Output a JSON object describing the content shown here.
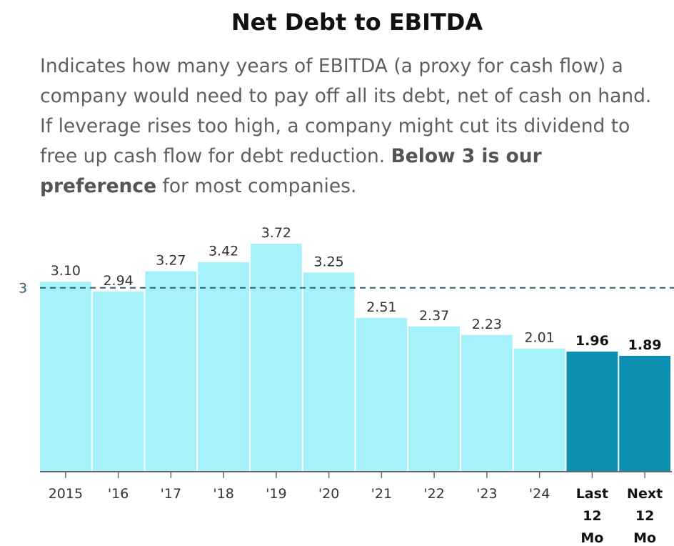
{
  "title": "Net Debt to EBITDA",
  "description": {
    "pre": "Indicates how many years of EBITDA (a proxy for cash flow) a company would need to pay off all its debt, net of cash on hand. If leverage rises too high, a company might cut its dividend to free up cash flow for debt reduction. ",
    "emphasis": "Below 3 is our preference",
    "post": " for most companies."
  },
  "chart_data": {
    "type": "bar",
    "categories": [
      "2015",
      "'16",
      "'17",
      "'18",
      "'19",
      "'20",
      "'21",
      "'22",
      "'23",
      "'24",
      "Last 12 Mo",
      "Next 12 Mo"
    ],
    "values": [
      3.1,
      2.94,
      3.27,
      3.42,
      3.72,
      3.25,
      2.51,
      2.37,
      2.23,
      2.01,
      1.96,
      1.89
    ],
    "value_labels": [
      "3.10",
      "2.94",
      "3.27",
      "3.42",
      "3.72",
      "3.25",
      "2.51",
      "2.37",
      "2.23",
      "2.01",
      "1.96",
      "1.89"
    ],
    "highlighted": [
      false,
      false,
      false,
      false,
      false,
      false,
      false,
      false,
      false,
      false,
      true,
      true
    ],
    "reference_line": {
      "value": 3,
      "label": "3",
      "style": "dashed"
    },
    "ylim": [
      0,
      3.72
    ],
    "colors": {
      "bar": "#a6f2fb",
      "highlight": "#0a8fb3",
      "reference": "#2e5d74",
      "axis": "#666666"
    },
    "grid": false,
    "legend": "none"
  }
}
